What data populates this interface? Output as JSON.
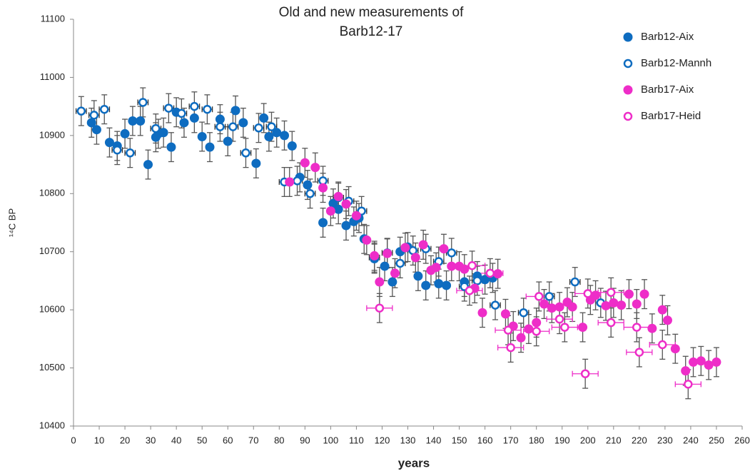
{
  "chart_data": {
    "type": "scatter",
    "title": [
      "Old and new measurements of",
      "Barb12-17"
    ],
    "x_label": "years",
    "y_label": "¹⁴C BP",
    "xlim": [
      0,
      260
    ],
    "ylim": [
      10400,
      11100
    ],
    "xticks": [
      0,
      10,
      20,
      30,
      40,
      50,
      60,
      70,
      80,
      90,
      100,
      110,
      120,
      130,
      140,
      150,
      160,
      170,
      180,
      190,
      200,
      210,
      220,
      230,
      240,
      250,
      260
    ],
    "yticks": [
      10400,
      10500,
      10600,
      10700,
      10800,
      10900,
      11000,
      11100
    ],
    "grid": false,
    "legend": "upper right",
    "series": [
      {
        "name": "Barb12-Aix",
        "color": "#0e6cc0",
        "marker": "filled",
        "yerr": 25,
        "x": [
          7,
          9,
          14,
          17,
          20,
          23,
          26,
          29,
          32,
          33,
          35,
          38,
          40,
          43,
          47,
          50,
          53,
          57,
          60,
          63,
          66,
          71,
          74,
          76,
          79,
          82,
          85,
          88,
          91,
          97,
          101,
          103,
          106,
          109,
          111,
          113,
          117,
          121,
          124,
          127,
          130,
          134,
          137,
          142,
          145,
          152,
          157,
          160,
          163
        ],
        "values": [
          10922,
          10910,
          10888,
          10882,
          10903,
          10925,
          10925,
          10850,
          10897,
          10903,
          10905,
          10880,
          10940,
          10922,
          10930,
          10898,
          10880,
          10928,
          10890,
          10943,
          10922,
          10852,
          10930,
          10898,
          10905,
          10900,
          10882,
          10828,
          10815,
          10750,
          10783,
          10773,
          10745,
          10752,
          10758,
          10722,
          10688,
          10675,
          10648,
          10700,
          10708,
          10658,
          10642,
          10645,
          10642,
          10648,
          10658,
          10652,
          10655
        ]
      },
      {
        "name": "Barb12-Mannh",
        "color": "#0e6cc0",
        "marker": "open",
        "yerr": 25,
        "xerr": 2,
        "x": [
          3,
          8,
          12,
          17,
          22,
          27,
          32,
          37,
          42,
          47,
          52,
          57,
          62,
          67,
          72,
          77,
          82,
          87,
          92,
          97,
          103,
          107,
          112,
          117,
          122,
          127,
          132,
          137,
          142,
          147,
          152,
          157,
          164,
          175,
          185,
          195,
          205
        ],
        "values": [
          10942,
          10935,
          10945,
          10875,
          10870,
          10957,
          10912,
          10947,
          10938,
          10950,
          10945,
          10915,
          10915,
          10870,
          10913,
          10915,
          10820,
          10822,
          10800,
          10822,
          10793,
          10787,
          10770,
          10690,
          10698,
          10680,
          10702,
          10705,
          10683,
          10698,
          10640,
          10650,
          10608,
          10595,
          10623,
          10648,
          10612
        ]
      },
      {
        "name": "Barb17-Aix",
        "color": "#ee2dc8",
        "marker": "filled",
        "yerr": 25,
        "x": [
          84,
          90,
          94,
          97,
          100,
          103,
          106,
          110,
          114,
          117,
          119,
          122,
          125,
          129,
          133,
          136,
          139,
          141,
          144,
          147,
          150,
          152,
          156,
          159,
          165,
          168,
          171,
          174,
          177,
          180,
          183,
          186,
          189,
          192,
          194,
          198,
          201,
          203,
          207,
          210,
          213,
          216,
          219,
          222,
          225,
          229,
          231,
          234,
          238,
          241,
          244,
          247,
          250
        ],
        "values": [
          10820,
          10853,
          10845,
          10810,
          10770,
          10795,
          10782,
          10762,
          10720,
          10693,
          10648,
          10697,
          10663,
          10707,
          10690,
          10712,
          10668,
          10673,
          10705,
          10675,
          10675,
          10670,
          10637,
          10595,
          10662,
          10593,
          10572,
          10552,
          10567,
          10578,
          10610,
          10603,
          10605,
          10613,
          10605,
          10570,
          10617,
          10625,
          10607,
          10612,
          10608,
          10627,
          10610,
          10627,
          10568,
          10600,
          10582,
          10533,
          10495,
          10510,
          10512,
          10505,
          10510
        ]
      },
      {
        "name": "Barb17-Heid",
        "color": "#ee2dc8",
        "marker": "open",
        "yerr": 25,
        "xerr": 5,
        "x": [
          119,
          154,
          155,
          162,
          169,
          170,
          180,
          181,
          189,
          191,
          199,
          200,
          209,
          209,
          219,
          220,
          229,
          239
        ],
        "values": [
          10603,
          10633,
          10676,
          10663,
          10565,
          10535,
          10563,
          10623,
          10584,
          10570,
          10490,
          10628,
          10630,
          10578,
          10570,
          10527,
          10540,
          10472
        ]
      }
    ]
  }
}
